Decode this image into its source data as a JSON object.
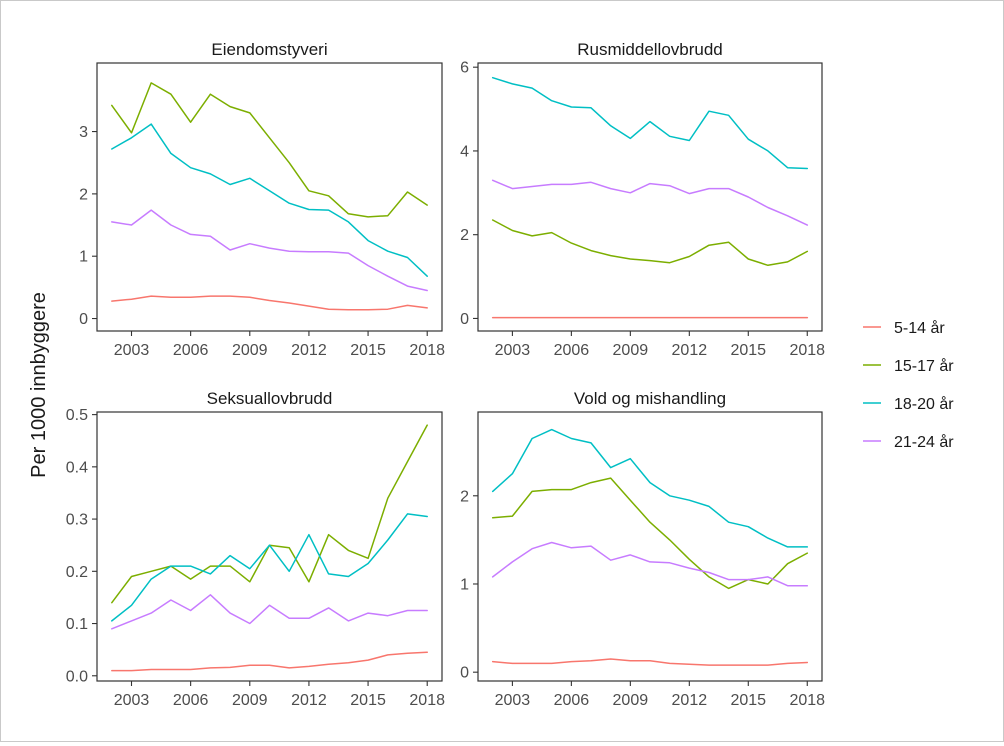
{
  "chart_data": {
    "type": "line",
    "ylabel": "Per 1000 innbyggere",
    "legend": {
      "placement": "right",
      "entries": [
        {
          "label": "5-14 år",
          "color": "#F8766D"
        },
        {
          "label": "15-17 år",
          "color": "#7CAE00"
        },
        {
          "label": "18-20 år",
          "color": "#00BFC4"
        },
        {
          "label": "21-24 år",
          "color": "#C77CFF"
        }
      ]
    },
    "x": [
      2002,
      2003,
      2004,
      2005,
      2006,
      2007,
      2008,
      2009,
      2010,
      2011,
      2012,
      2013,
      2014,
      2015,
      2016,
      2017,
      2018
    ],
    "xticks": [
      "2003",
      "2006",
      "2009",
      "2012",
      "2015",
      "2018"
    ],
    "panels": [
      {
        "title": "Eiendomstyveri",
        "ylim": [
          -0.2,
          4.1
        ],
        "yticks": [
          "0",
          "1",
          "2",
          "3"
        ],
        "series": [
          {
            "name": "5-14 år",
            "values": [
              0.28,
              0.31,
              0.36,
              0.34,
              0.34,
              0.36,
              0.36,
              0.34,
              0.29,
              0.25,
              0.2,
              0.15,
              0.14,
              0.14,
              0.15,
              0.21,
              0.17
            ]
          },
          {
            "name": "15-17 år",
            "values": [
              3.42,
              2.98,
              3.78,
              3.6,
              3.15,
              3.6,
              3.4,
              3.3,
              2.9,
              2.5,
              2.05,
              1.97,
              1.68,
              1.63,
              1.65,
              2.03,
              1.82
            ]
          },
          {
            "name": "18-20 år",
            "values": [
              2.72,
              2.9,
              3.12,
              2.65,
              2.42,
              2.32,
              2.15,
              2.25,
              2.05,
              1.85,
              1.75,
              1.74,
              1.55,
              1.25,
              1.08,
              0.98,
              0.68
            ]
          },
          {
            "name": "21-24 år",
            "values": [
              1.55,
              1.5,
              1.74,
              1.5,
              1.35,
              1.32,
              1.1,
              1.2,
              1.13,
              1.08,
              1.07,
              1.07,
              1.05,
              0.85,
              0.68,
              0.52,
              0.45
            ]
          }
        ]
      },
      {
        "title": "Rusmiddellovbrudd",
        "ylim": [
          -0.3,
          6.1
        ],
        "yticks": [
          "0",
          "2",
          "4",
          "6"
        ],
        "series": [
          {
            "name": "5-14 år",
            "values": [
              0.02,
              0.02,
              0.02,
              0.02,
              0.02,
              0.02,
              0.02,
              0.02,
              0.02,
              0.02,
              0.02,
              0.02,
              0.02,
              0.02,
              0.02,
              0.02,
              0.02
            ]
          },
          {
            "name": "15-17 år",
            "values": [
              2.35,
              2.1,
              1.97,
              2.05,
              1.8,
              1.62,
              1.5,
              1.42,
              1.38,
              1.33,
              1.48,
              1.75,
              1.82,
              1.42,
              1.27,
              1.35,
              1.6
            ]
          },
          {
            "name": "18-20 år",
            "values": [
              5.75,
              5.6,
              5.5,
              5.2,
              5.05,
              5.03,
              4.6,
              4.3,
              4.7,
              4.35,
              4.25,
              4.95,
              4.85,
              4.28,
              4.0,
              3.6,
              3.58
            ]
          },
          {
            "name": "21-24 år",
            "values": [
              3.3,
              3.1,
              3.15,
              3.2,
              3.2,
              3.25,
              3.1,
              3.0,
              3.22,
              3.17,
              2.98,
              3.1,
              3.1,
              2.9,
              2.65,
              2.45,
              2.23
            ]
          }
        ]
      },
      {
        "title": "Seksuallovbrudd",
        "ylim": [
          -0.01,
          0.505
        ],
        "yticks": [
          "0.0",
          "0.1",
          "0.2",
          "0.3",
          "0.4",
          "0.5"
        ],
        "series": [
          {
            "name": "5-14 år",
            "values": [
              0.01,
              0.01,
              0.012,
              0.012,
              0.012,
              0.015,
              0.016,
              0.02,
              0.02,
              0.015,
              0.018,
              0.022,
              0.025,
              0.03,
              0.04,
              0.043,
              0.045
            ]
          },
          {
            "name": "15-17 år",
            "values": [
              0.14,
              0.19,
              0.2,
              0.21,
              0.185,
              0.21,
              0.21,
              0.18,
              0.25,
              0.245,
              0.18,
              0.27,
              0.24,
              0.225,
              0.34,
              0.41,
              0.48
            ]
          },
          {
            "name": "18-20 år",
            "values": [
              0.105,
              0.135,
              0.185,
              0.21,
              0.21,
              0.195,
              0.23,
              0.205,
              0.25,
              0.2,
              0.27,
              0.195,
              0.19,
              0.215,
              0.26,
              0.31,
              0.305
            ]
          },
          {
            "name": "21-24 år",
            "values": [
              0.09,
              0.105,
              0.12,
              0.145,
              0.125,
              0.155,
              0.12,
              0.1,
              0.135,
              0.11,
              0.11,
              0.13,
              0.105,
              0.12,
              0.115,
              0.125,
              0.125
            ]
          }
        ]
      },
      {
        "title": "Vold og mishandling",
        "ylim": [
          -0.1,
          2.95
        ],
        "yticks": [
          "0",
          "1",
          "2"
        ],
        "series": [
          {
            "name": "5-14 år",
            "values": [
              0.12,
              0.1,
              0.1,
              0.1,
              0.12,
              0.13,
              0.15,
              0.13,
              0.13,
              0.1,
              0.09,
              0.08,
              0.08,
              0.08,
              0.08,
              0.1,
              0.11
            ]
          },
          {
            "name": "15-17 år",
            "values": [
              1.75,
              1.77,
              2.05,
              2.07,
              2.07,
              2.15,
              2.2,
              1.95,
              1.7,
              1.5,
              1.28,
              1.08,
              0.95,
              1.05,
              1.0,
              1.23,
              1.35
            ]
          },
          {
            "name": "18-20 år",
            "values": [
              2.05,
              2.25,
              2.65,
              2.75,
              2.65,
              2.6,
              2.32,
              2.42,
              2.15,
              2.0,
              1.95,
              1.88,
              1.7,
              1.65,
              1.52,
              1.42,
              1.42
            ]
          },
          {
            "name": "21-24 år",
            "values": [
              1.08,
              1.25,
              1.4,
              1.47,
              1.41,
              1.43,
              1.27,
              1.33,
              1.25,
              1.24,
              1.18,
              1.13,
              1.05,
              1.05,
              1.08,
              0.98,
              0.98
            ]
          }
        ]
      }
    ]
  }
}
